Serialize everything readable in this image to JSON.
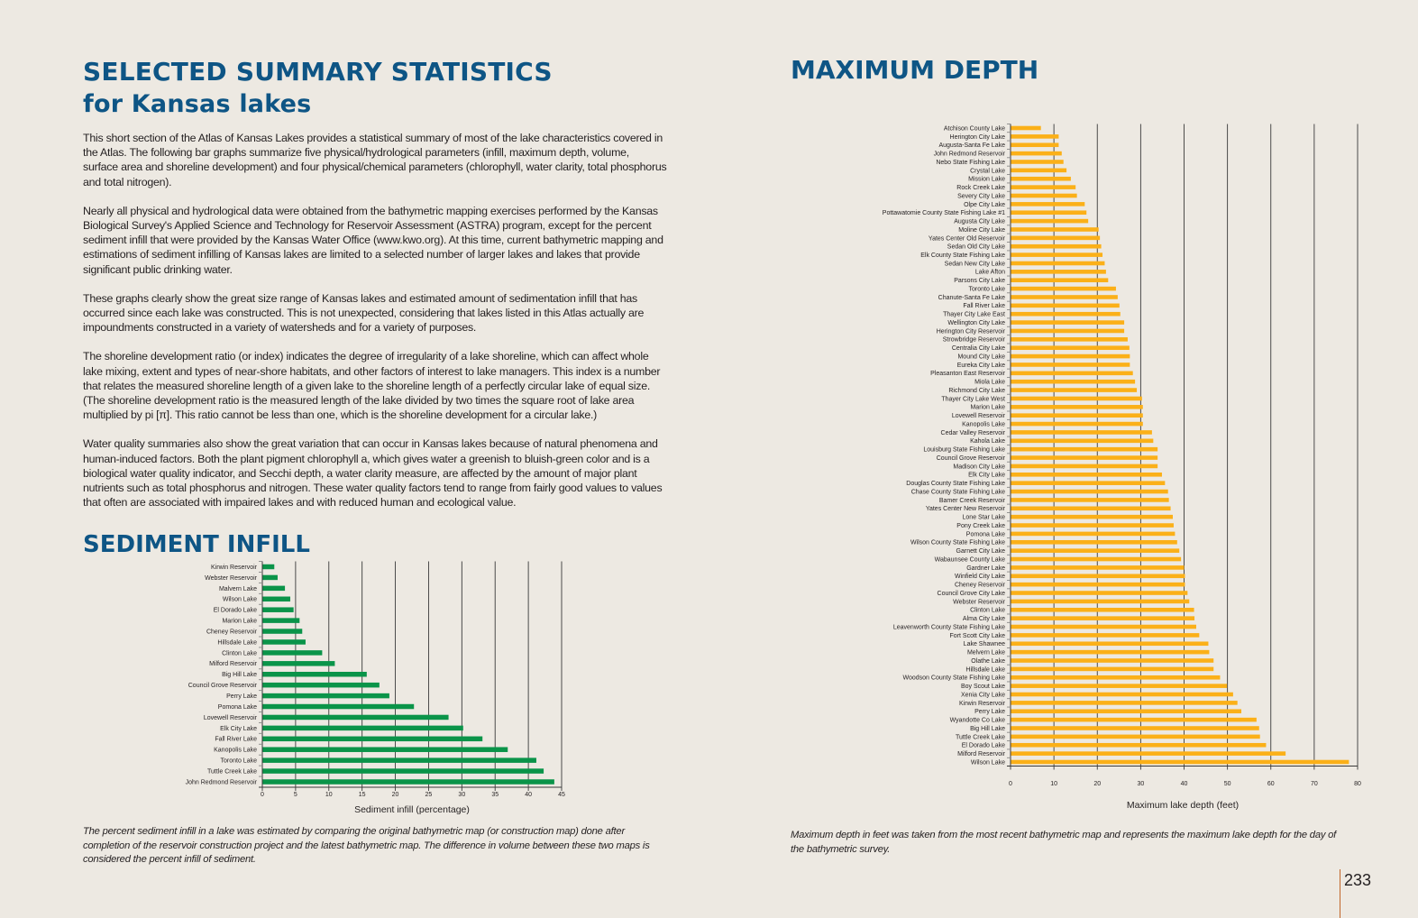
{
  "page": {
    "title_line1": "SELECTED SUMMARY STATISTICS",
    "title_line2": "for Kansas lakes",
    "paragraphs": [
      "This short section of the Atlas of Kansas Lakes provides a statistical summary of most of the lake characteristics covered in the Atlas. The following bar graphs summarize five physical/hydrological parameters (infill, maximum depth, volume, surface area and shoreline development) and four physical/chemical parameters (chlorophyll, water clarity, total phosphorus and total nitrogen).",
      "Nearly all physical and hydrological data were obtained from the bathymetric mapping exercises performed by the Kansas Biological Survey's Applied Science and Technology for Reservoir Assessment (ASTRA) program, except for the percent sediment infill that were provided by the Kansas Water Office (www.kwo.org). At this time, current bathymetric mapping and estimations of sediment infilling of Kansas lakes are limited to a selected number of larger lakes and lakes that provide significant public drinking water.",
      "These graphs clearly show the great size range of Kansas lakes and estimated amount of sedimentation infill that has occurred since each lake was constructed. This is not unexpected, considering that lakes listed in this Atlas actually are impoundments constructed in a variety of watersheds and for a variety of purposes.",
      "The shoreline development ratio (or index) indicates the degree of irregularity of a lake shoreline, which can affect whole lake mixing, extent and types of near-shore habitats, and other factors of interest to lake managers. This index is a number that relates the measured shoreline length of a given lake to the shoreline length of a perfectly circular lake of equal size. (The shoreline development ratio is the measured length of the lake divided by two times the square root of lake area multiplied by pi [π]. This ratio cannot be less than one, which is the shoreline development for a circular lake.)",
      "Water quality summaries also show the great variation that can occur in Kansas lakes because of natural phenomena and human-induced factors. Both the plant pigment chlorophyll a, which gives water a greenish to bluish-green color and is a biological water quality indicator, and Secchi depth, a water clarity measure, are affected by the amount of major plant nutrients such as total phosphorus and nitrogen. These water quality factors tend to range from fairly good values to values that often are associated with impaired lakes and with reduced human and ecological value."
    ],
    "sediment_heading": "SEDIMENT INFILL",
    "sediment_caption": "The percent sediment infill in a lake was estimated by comparing the original bathymetric map (or construction map) done after completion of the reservoir construction project and the latest bathymetric map. The difference in volume between these two maps is considered the percent infill of sediment.",
    "depth_heading": "MAXIMUM DEPTH",
    "depth_caption": "Maximum depth in feet was taken from the most recent bathymetric map and represents the maximum lake depth for the day of the bathymetric survey.",
    "page_number": "233",
    "colors": {
      "heading": "#0e5585",
      "sediment_bar": "#0a9449",
      "depth_bar": "#fbb018",
      "page_rule": "#c2662a"
    }
  },
  "chart_data": [
    {
      "type": "bar",
      "orientation": "horizontal",
      "title": "SEDIMENT INFILL",
      "xlabel": "Sediment infill (percentage)",
      "ylabel": "",
      "xlim": [
        0,
        45
      ],
      "xticks": [
        0,
        5,
        10,
        15,
        20,
        25,
        30,
        35,
        40,
        45
      ],
      "grid": true,
      "categories": [
        "Kirwin Reservoir",
        "Webster Reservoir",
        "Malvern Lake",
        "Wilson Lake",
        "El Dorado Lake",
        "Marion Lake",
        "Cheney Reservoir",
        "Hillsdale Lake",
        "Clinton Lake",
        "Milford Reservoir",
        "Big Hill Lake",
        "Council Grove Reservoir",
        "Perry Lake",
        "Pomona Lake",
        "Lovewell Reservoir",
        "Elk City Lake",
        "Fall River Lake",
        "Kanopolis Lake",
        "Toronto Lake",
        "Tuttle Creek Lake",
        "John Redmond Reservoir"
      ],
      "values": [
        1.8,
        2.3,
        3.4,
        4.2,
        4.7,
        5.6,
        6.0,
        6.5,
        9.0,
        10.9,
        15.7,
        17.6,
        19.1,
        22.8,
        28.0,
        30.2,
        33.1,
        36.9,
        41.2,
        42.3,
        43.9
      ]
    },
    {
      "type": "bar",
      "orientation": "horizontal",
      "title": "MAXIMUM DEPTH",
      "xlabel": "Maximum lake depth (feet)",
      "ylabel": "",
      "xlim": [
        0,
        80
      ],
      "xticks": [
        0,
        10,
        20,
        30,
        40,
        50,
        60,
        70,
        80
      ],
      "grid": true,
      "categories": [
        "Atchison County Lake",
        "Herington City Lake",
        "Augusta-Santa Fe Lake",
        "John Redmond Reservoir",
        "Nebo State Fishing Lake",
        "Crystal Lake",
        "Mission Lake",
        "Rock Creek Lake",
        "Severy City Lake",
        "Olpe City Lake",
        "Pottawatomie County State Fishing Lake #1",
        "Augusta City Lake",
        "Moline City Lake",
        "Yates Center Old Reservoir",
        "Sedan Old City Lake",
        "Elk County State Fishing Lake",
        "Sedan New City Lake",
        "Lake Afton",
        "Parsons City Lake",
        "Toronto Lake",
        "Chanute-Santa Fe Lake",
        "Fall River Lake",
        "Thayer City Lake East",
        "Wellington City Lake",
        "Herington City Reservoir",
        "Strowbridge Reservoir",
        "Centralia City Lake",
        "Mound City Lake",
        "Eureka City Lake",
        "Pleasanton East Reservoir",
        "Miola Lake",
        "Richmond City Lake",
        "Thayer City Lake West",
        "Marion Lake",
        "Lovewell Reservoir",
        "Kanopolis Lake",
        "Cedar Valley Reservoir",
        "Kahola Lake",
        "Louisburg State Fishing Lake",
        "Council Grove Reservoir",
        "Madison City Lake",
        "Elk City Lake",
        "Douglas County State Fishing Lake",
        "Chase County State Fishing Lake",
        "Bamer Creek Reservoir",
        "Yates Center New Reservoir",
        "Lone Star Lake",
        "Pony Creek Lake",
        "Pomona Lake",
        "Wilson County State Fishing Lake",
        "Garnett City Lake",
        "Wabaunsee County Lake",
        "Gardner Lake",
        "Winfield City Lake",
        "Cheney Reservoir",
        "Council Grove City Lake",
        "Webster Reservoir",
        "Clinton Lake",
        "Alma City Lake",
        "Leavenworth County State Fishing Lake",
        "Fort Scott City Lake",
        "Lake Shawnee",
        "Melvern Lake",
        "Olathe Lake",
        "Hillsdale Lake",
        "Woodson County State Fishing Lake",
        "Boy Scout Lake",
        "Xenia City Lake",
        "Kirwin Reservoir",
        "Perry Lake",
        "Wyandotte Co Lake",
        "Big Hill Lake",
        "Tuttle Creek Lake",
        "El Dorado Lake",
        "Milford Reservoir",
        "Wilson Lake"
      ],
      "values": [
        7.0,
        11.1,
        11.1,
        11.8,
        12.2,
        12.9,
        13.9,
        15.0,
        15.3,
        17.1,
        17.5,
        17.9,
        20.3,
        20.6,
        20.9,
        21.2,
        21.7,
        22.0,
        22.5,
        24.3,
        24.7,
        25.1,
        25.3,
        26.2,
        26.2,
        27.0,
        27.4,
        27.5,
        27.5,
        28.2,
        28.7,
        29.1,
        30.3,
        30.5,
        30.5,
        30.5,
        32.6,
        32.9,
        33.9,
        33.9,
        33.9,
        34.9,
        35.6,
        36.3,
        36.5,
        36.9,
        37.4,
        37.6,
        37.9,
        38.4,
        38.9,
        39.3,
        40.0,
        40.2,
        40.2,
        40.8,
        41.2,
        42.3,
        42.4,
        42.8,
        43.5,
        45.6,
        45.8,
        46.8,
        46.8,
        48.3,
        49.9,
        51.3,
        52.3,
        53.2,
        56.7,
        57.3,
        57.5,
        58.9,
        63.4,
        78.0
      ]
    }
  ]
}
